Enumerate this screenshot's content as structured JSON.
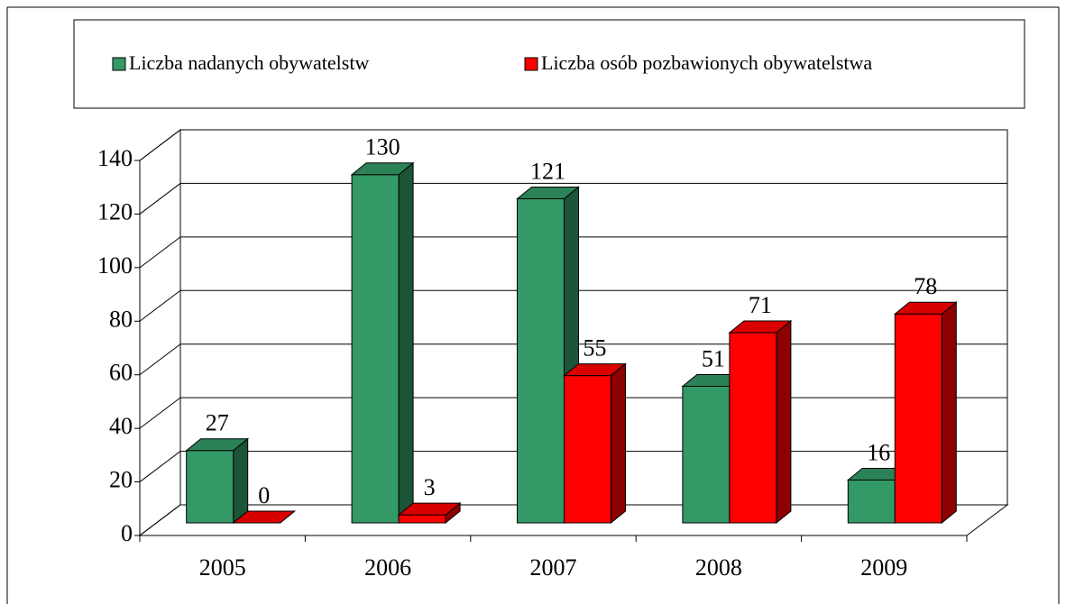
{
  "chart_data": {
    "type": "bar3d",
    "categories": [
      "2005",
      "2006",
      "2007",
      "2008",
      "2009"
    ],
    "series": [
      {
        "name": "Liczba nadanych obywatelstw",
        "color": "#339966",
        "values": [
          27,
          130,
          121,
          51,
          16
        ]
      },
      {
        "name": "Liczba osób pozbawionych obywatelstwa",
        "color": "#ff0000",
        "values": [
          0,
          3,
          55,
          71,
          78
        ]
      }
    ],
    "ylim": [
      0,
      140
    ],
    "yticks": [
      0,
      20,
      40,
      60,
      80,
      100,
      120,
      140
    ],
    "grid": true,
    "legend": "top"
  }
}
